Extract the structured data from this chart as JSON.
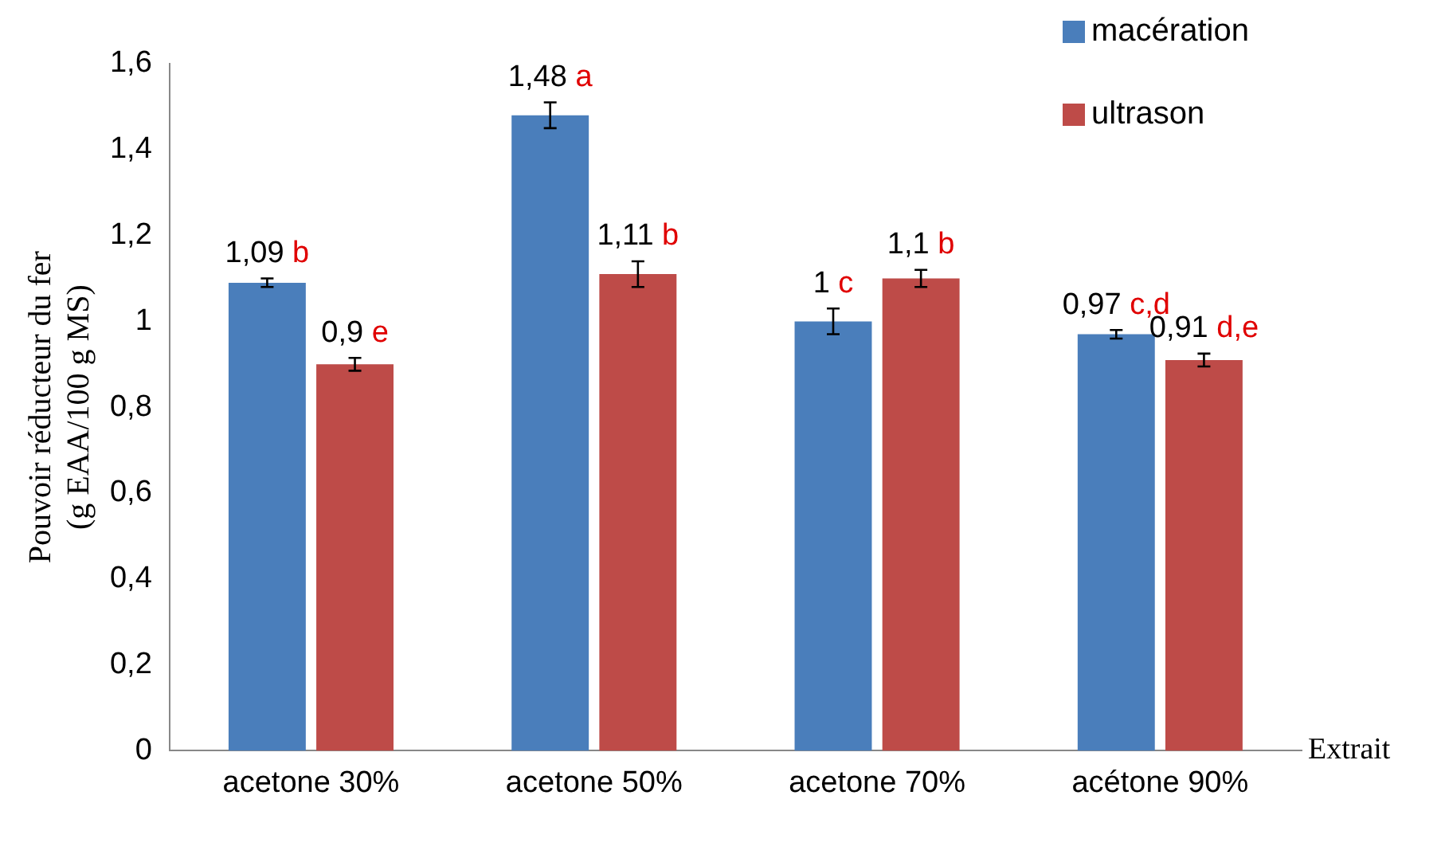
{
  "chart_data": {
    "type": "bar",
    "xlabel": "Extrait",
    "ylabel": "Pouvoir réducteur du fer\n(g EAA/100 g MS)",
    "categories": [
      "acetone 30%",
      "acetone 50%",
      "acetone 70%",
      "acétone 90%"
    ],
    "series": [
      {
        "name": "macération",
        "color": "#4a7ebb",
        "values": [
          1.09,
          1.48,
          1.0,
          0.97
        ],
        "errors": [
          0.01,
          0.03,
          0.03,
          0.01
        ],
        "value_labels": [
          "1,09 b",
          "1,48 a",
          "1 c",
          "0,97 c,d"
        ]
      },
      {
        "name": "ultrason",
        "color": "#be4b48",
        "values": [
          0.9,
          1.11,
          1.1,
          0.91
        ],
        "errors": [
          0.015,
          0.03,
          0.02,
          0.015
        ],
        "value_labels": [
          "0,9 e",
          "1,11 b",
          "1,1 b",
          "0,91 d,e"
        ]
      }
    ],
    "ylim": [
      0,
      1.6
    ],
    "yticks": [
      0,
      {
        "value": 0.2,
        "label": "0,2"
      },
      {
        "value": 0.4,
        "label": "0,4"
      },
      {
        "value": 0.6,
        "label": "0,6"
      },
      {
        "value": 0.8,
        "label": "0,8"
      },
      1,
      {
        "value": 1.2,
        "label": "1,2"
      },
      {
        "value": 1.4,
        "label": "1,4"
      },
      {
        "value": 1.6,
        "label": "1,6"
      }
    ],
    "grid": false,
    "legend": "top right"
  }
}
